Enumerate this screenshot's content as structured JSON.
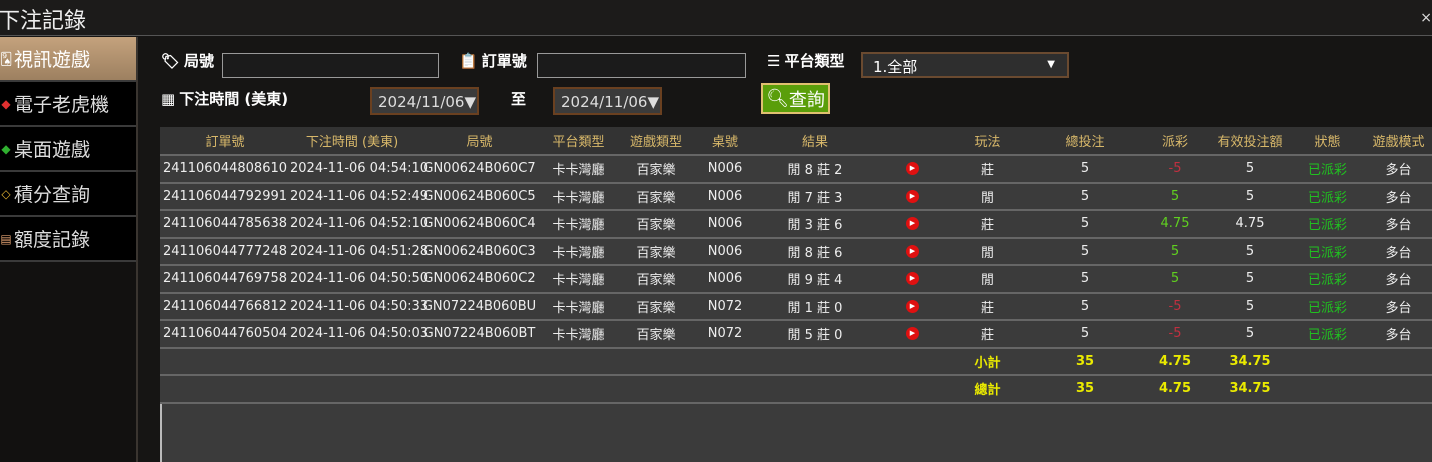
{
  "window": {
    "title": "下注記錄",
    "close": "×"
  },
  "sidebar": {
    "items": [
      {
        "label": "視訊遊戲",
        "icon": "card-icon",
        "active": true
      },
      {
        "label": "電子老虎機",
        "icon": "slot-icon"
      },
      {
        "label": "桌面遊戲",
        "icon": "diamond-icon"
      },
      {
        "label": "積分查詢",
        "icon": "points-icon"
      },
      {
        "label": "額度記錄",
        "icon": "document-icon"
      }
    ]
  },
  "filters": {
    "round_label": "局號",
    "round_value": "",
    "order_label": "訂單號",
    "order_value": "",
    "platform_label": "平台類型",
    "platform_value": "1.全部",
    "time_label": "下注時間 (美東)",
    "date_from": "2024/11/06▼",
    "to_label": "至",
    "date_to": "2024/11/06▼",
    "query_label": "查詢"
  },
  "table": {
    "headers": [
      "訂單號",
      "下注時間 (美東)",
      "局號",
      "平台類型",
      "遊戲類型",
      "桌號",
      "結果",
      "",
      "玩法",
      "總投注",
      "派彩",
      "有效投注額",
      "狀態",
      "遊戲模式"
    ],
    "rows": [
      [
        "241106044808610",
        "2024-11-06 04:54:10",
        "GN00624B060C7",
        "卡卡灣廳",
        "百家樂",
        "N006",
        "閒 8 莊 2",
        "",
        "莊",
        "5",
        "-5",
        "5",
        "已派彩",
        "多台"
      ],
      [
        "241106044792991",
        "2024-11-06 04:52:49",
        "GN00624B060C5",
        "卡卡灣廳",
        "百家樂",
        "N006",
        "閒 7 莊 3",
        "",
        "閒",
        "5",
        "5",
        "5",
        "已派彩",
        "多台"
      ],
      [
        "241106044785638",
        "2024-11-06 04:52:10",
        "GN00624B060C4",
        "卡卡灣廳",
        "百家樂",
        "N006",
        "閒 3 莊 6",
        "",
        "莊",
        "5",
        "4.75",
        "4.75",
        "已派彩",
        "多台"
      ],
      [
        "241106044777248",
        "2024-11-06 04:51:28",
        "GN00624B060C3",
        "卡卡灣廳",
        "百家樂",
        "N006",
        "閒 8 莊 6",
        "",
        "閒",
        "5",
        "5",
        "5",
        "已派彩",
        "多台"
      ],
      [
        "241106044769758",
        "2024-11-06 04:50:50",
        "GN00624B060C2",
        "卡卡灣廳",
        "百家樂",
        "N006",
        "閒 9 莊 4",
        "",
        "閒",
        "5",
        "5",
        "5",
        "已派彩",
        "多台"
      ],
      [
        "241106044766812",
        "2024-11-06 04:50:33",
        "GN07224B060BU",
        "卡卡灣廳",
        "百家樂",
        "N072",
        "閒 1 莊 0",
        "",
        "莊",
        "5",
        "-5",
        "5",
        "已派彩",
        "多台"
      ],
      [
        "241106044760504",
        "2024-11-06 04:50:03",
        "GN07224B060BT",
        "卡卡灣廳",
        "百家樂",
        "N072",
        "閒 5 莊 0",
        "",
        "莊",
        "5",
        "-5",
        "5",
        "已派彩",
        "多台"
      ]
    ],
    "subtotal": {
      "label": "小計",
      "total_bet": "35",
      "payout": "4.75",
      "valid_bet": "34.75"
    },
    "grandtotal": {
      "label": "總計",
      "total_bet": "35",
      "payout": "4.75",
      "valid_bet": "34.75"
    }
  },
  "colors": {
    "header_text": "#d8b86a",
    "negative": "#c03040",
    "positive": "#60d020",
    "status": "#20c020",
    "sum": "#eaea00",
    "query_button": "#5a9e0a"
  }
}
